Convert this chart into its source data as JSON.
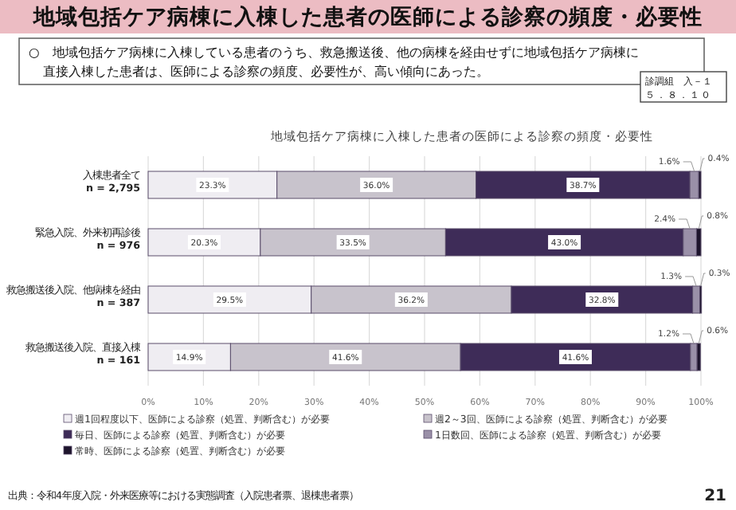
{
  "chart_data": {
    "type": "bar",
    "orientation": "horizontal",
    "stacked": true,
    "title": "地域包括ケア病棟に入棟した患者の医師による診察の頻度・必要性",
    "subtitle": "地域包括ケア病棟に入棟した患者の医師による診察の頻度・必要性",
    "annotations": [
      "○　地域包括ケア病棟に入棟している患者のうち、救急搬送後、他の病棟を経由せずに地域包括ケア病棟に直接入棟した患者は、医師による診察の頻度、必要性が、高い傾向にあった。",
      "診調組　入－１",
      "５．８．１０",
      "出典：令和4年度入院・外来医療等における実態調査（入院患者票、退棟患者票）",
      "21"
    ],
    "categories": [
      "入棟患者全て\nn = 2,795",
      "緊急入院、外来初再診後\nn = 976",
      "救急搬送後入院、他病棟を経由\nn = 387",
      "救急搬送後入院、直接入棟\nn = 161"
    ],
    "series": [
      {
        "name": "週1回程度以下、医師による診察（処置、判断含む）が必要",
        "color": "#efedf2",
        "values": [
          23.3,
          20.3,
          29.5,
          14.9
        ],
        "value_labels": [
          "23.3%",
          "20.3%",
          "29.5%",
          "14.9%"
        ]
      },
      {
        "name": "週2～3回、医師による診察（処置、判断含む）が必要",
        "color": "#c8c3cc",
        "values": [
          36.0,
          33.5,
          36.2,
          41.6
        ],
        "value_labels": [
          "36.0%",
          "33.5%",
          "36.2%",
          "41.6%"
        ]
      },
      {
        "name": "毎日、医師による診察（処置、判断含む）が必要",
        "color": "#3e2c58",
        "values": [
          38.7,
          43.0,
          32.8,
          41.6
        ],
        "value_labels": [
          "38.7%",
          "43.0%",
          "32.8%",
          "41.6%"
        ]
      },
      {
        "name": "1日数回、医師による診察（処置、判断含む）が必要",
        "color": "#9a90a8",
        "values": [
          1.6,
          2.4,
          1.3,
          1.2
        ],
        "value_labels": [
          "1.6%",
          "2.4%",
          "1.3%",
          "1.2%"
        ]
      },
      {
        "name": "常時、医師による診察（処置、判断含む）が必要",
        "color": "#1d142c",
        "values": [
          0.4,
          0.8,
          0.3,
          0.6
        ],
        "value_labels": [
          "0.4%",
          "0.8%",
          "0.3%",
          "0.6%"
        ]
      }
    ],
    "xlim": [
      0,
      100
    ],
    "xticks": [
      {
        "value": 0,
        "label": "0%"
      },
      {
        "value": 10,
        "label": "10%"
      },
      {
        "value": 20,
        "label": "20%"
      },
      {
        "value": 30,
        "label": "30%"
      },
      {
        "value": 40,
        "label": "40%"
      },
      {
        "value": 50,
        "label": "50%"
      },
      {
        "value": 60,
        "label": "60%"
      },
      {
        "value": 70,
        "label": "70%"
      },
      {
        "value": 80,
        "label": "80%"
      },
      {
        "value": 90,
        "label": "90%"
      },
      {
        "value": 100,
        "label": "100%"
      }
    ],
    "grid": "x",
    "legend": "bottom"
  }
}
